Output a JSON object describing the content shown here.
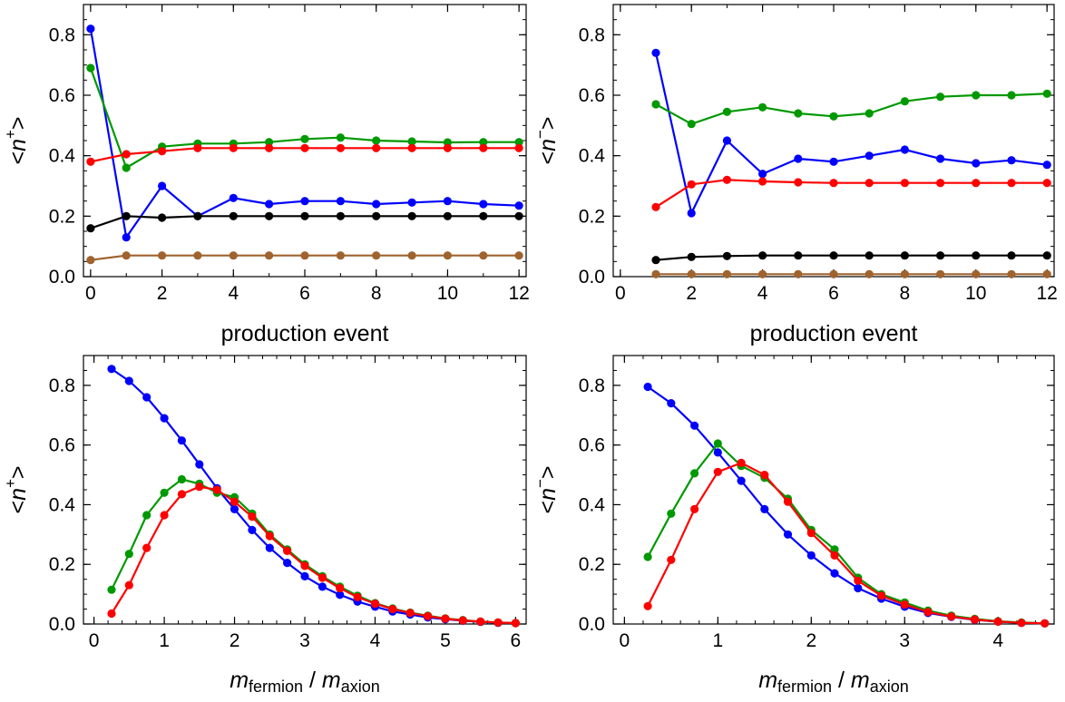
{
  "colors": {
    "blue": "#0000ff",
    "green": "#009900",
    "red": "#ff0000",
    "black": "#000000",
    "brown": "#a0632e"
  },
  "chart_data": [
    {
      "type": "line",
      "xlabel": "production event",
      "ylabel": {
        "open": "<",
        "var": "n",
        "sup": "+",
        "close": ">"
      },
      "xlim": [
        -0.2,
        12.2
      ],
      "ylim": [
        0,
        0.9
      ],
      "xticks": [
        0,
        2,
        4,
        6,
        8,
        10,
        12
      ],
      "yticks": [
        0.0,
        0.2,
        0.4,
        0.6,
        0.8
      ],
      "xtick_labels": [
        "0",
        "2",
        "4",
        "6",
        "8",
        "10",
        "12"
      ],
      "ytick_labels": [
        "0.0",
        "0.2",
        "0.4",
        "0.6",
        "0.8"
      ],
      "xminor": 1,
      "yminor": 0.05,
      "x": [
        0,
        1,
        2,
        3,
        4,
        5,
        6,
        7,
        8,
        9,
        10,
        11,
        12
      ],
      "series": [
        {
          "color": "blue",
          "values": [
            0.82,
            0.13,
            0.3,
            0.2,
            0.26,
            0.24,
            0.25,
            0.25,
            0.24,
            0.245,
            0.25,
            0.24,
            0.235
          ]
        },
        {
          "color": "green",
          "values": [
            0.69,
            0.36,
            0.43,
            0.44,
            0.44,
            0.445,
            0.455,
            0.46,
            0.45,
            0.447,
            0.444,
            0.445,
            0.445
          ]
        },
        {
          "color": "red",
          "values": [
            0.38,
            0.405,
            0.415,
            0.425,
            0.425,
            0.425,
            0.425,
            0.425,
            0.425,
            0.425,
            0.425,
            0.425,
            0.425
          ]
        },
        {
          "color": "black",
          "values": [
            0.16,
            0.2,
            0.195,
            0.2,
            0.2,
            0.2,
            0.2,
            0.2,
            0.2,
            0.2,
            0.2,
            0.2,
            0.2
          ]
        },
        {
          "color": "brown",
          "values": [
            0.055,
            0.07,
            0.07,
            0.07,
            0.07,
            0.07,
            0.07,
            0.07,
            0.07,
            0.07,
            0.07,
            0.07,
            0.07
          ]
        }
      ]
    },
    {
      "type": "line",
      "xlabel": "production event",
      "ylabel": {
        "open": "<",
        "var": "n",
        "sup": "−",
        "close": ">"
      },
      "xlim": [
        -0.2,
        12.2
      ],
      "ylim": [
        0,
        0.9
      ],
      "xticks": [
        0,
        2,
        4,
        6,
        8,
        10,
        12
      ],
      "yticks": [
        0.0,
        0.2,
        0.4,
        0.6,
        0.8
      ],
      "xtick_labels": [
        "0",
        "2",
        "4",
        "6",
        "8",
        "10",
        "12"
      ],
      "ytick_labels": [
        "0.0",
        "0.2",
        "0.4",
        "0.6",
        "0.8"
      ],
      "xminor": 1,
      "yminor": 0.05,
      "x": [
        1,
        2,
        3,
        4,
        5,
        6,
        7,
        8,
        9,
        10,
        11,
        12
      ],
      "series": [
        {
          "color": "blue",
          "values": [
            0.74,
            0.21,
            0.45,
            0.34,
            0.39,
            0.38,
            0.4,
            0.42,
            0.39,
            0.375,
            0.385,
            0.37
          ]
        },
        {
          "color": "green",
          "values": [
            0.57,
            0.505,
            0.545,
            0.56,
            0.54,
            0.53,
            0.54,
            0.58,
            0.595,
            0.6,
            0.6,
            0.605
          ]
        },
        {
          "color": "red",
          "values": [
            0.23,
            0.305,
            0.32,
            0.315,
            0.312,
            0.31,
            0.31,
            0.31,
            0.31,
            0.31,
            0.31,
            0.31
          ]
        },
        {
          "color": "black",
          "values": [
            0.055,
            0.065,
            0.068,
            0.07,
            0.07,
            0.07,
            0.07,
            0.07,
            0.07,
            0.07,
            0.07,
            0.07
          ]
        },
        {
          "color": "brown",
          "values": [
            0.008,
            0.008,
            0.008,
            0.008,
            0.008,
            0.008,
            0.008,
            0.008,
            0.008,
            0.008,
            0.008,
            0.008
          ]
        }
      ]
    },
    {
      "type": "line",
      "xlabel": {
        "a": "m",
        "a_sub": "fermion",
        "sep": " / ",
        "b": "m",
        "b_sub": "axion"
      },
      "ylabel": {
        "open": "<",
        "var": "n",
        "sup": "+",
        "close": ">"
      },
      "xlim": [
        -0.15,
        6.15
      ],
      "ylim": [
        0,
        0.9
      ],
      "xticks": [
        0,
        1,
        2,
        3,
        4,
        5,
        6
      ],
      "yticks": [
        0.0,
        0.2,
        0.4,
        0.6,
        0.8
      ],
      "xtick_labels": [
        "0",
        "1",
        "2",
        "3",
        "4",
        "5",
        "6"
      ],
      "ytick_labels": [
        "0.0",
        "0.2",
        "0.4",
        "0.6",
        "0.8"
      ],
      "xminor": 0.2,
      "yminor": 0.05,
      "x": [
        0.25,
        0.5,
        0.75,
        1.0,
        1.25,
        1.5,
        1.75,
        2.0,
        2.25,
        2.5,
        2.75,
        3.0,
        3.25,
        3.5,
        3.75,
        4.0,
        4.25,
        4.5,
        4.75,
        5.0,
        5.25,
        5.5,
        5.75,
        6.0
      ],
      "series": [
        {
          "color": "blue",
          "values": [
            0.855,
            0.815,
            0.76,
            0.69,
            0.615,
            0.535,
            0.455,
            0.385,
            0.315,
            0.255,
            0.205,
            0.16,
            0.125,
            0.098,
            0.075,
            0.058,
            0.042,
            0.032,
            0.022,
            0.016,
            0.011,
            0.007,
            0.004,
            0.003
          ]
        },
        {
          "color": "green",
          "values": [
            0.115,
            0.235,
            0.365,
            0.44,
            0.485,
            0.47,
            0.44,
            0.425,
            0.37,
            0.3,
            0.25,
            0.2,
            0.16,
            0.125,
            0.095,
            0.07,
            0.052,
            0.038,
            0.028,
            0.019,
            0.013,
            0.008,
            0.005,
            0.003
          ]
        },
        {
          "color": "red",
          "values": [
            0.035,
            0.13,
            0.255,
            0.365,
            0.435,
            0.46,
            0.45,
            0.41,
            0.36,
            0.295,
            0.245,
            0.195,
            0.155,
            0.12,
            0.09,
            0.068,
            0.05,
            0.037,
            0.026,
            0.018,
            0.012,
            0.008,
            0.005,
            0.003
          ]
        }
      ]
    },
    {
      "type": "line",
      "xlabel": {
        "a": "m",
        "a_sub": "fermion",
        "sep": " / ",
        "b": "m",
        "b_sub": "axion"
      },
      "ylabel": {
        "open": "<",
        "var": "n",
        "sup": "−",
        "close": ">"
      },
      "xlim": [
        -0.12,
        4.6
      ],
      "ylim": [
        0,
        0.9
      ],
      "xticks": [
        0,
        1,
        2,
        3,
        4
      ],
      "yticks": [
        0.0,
        0.2,
        0.4,
        0.6,
        0.8
      ],
      "xtick_labels": [
        "0",
        "1",
        "2",
        "3",
        "4"
      ],
      "ytick_labels": [
        "0.0",
        "0.2",
        "0.4",
        "0.6",
        "0.8"
      ],
      "xminor": 0.2,
      "yminor": 0.05,
      "x": [
        0.25,
        0.5,
        0.75,
        1.0,
        1.25,
        1.5,
        1.75,
        2.0,
        2.25,
        2.5,
        2.75,
        3.0,
        3.25,
        3.5,
        3.75,
        4.0,
        4.25,
        4.5
      ],
      "series": [
        {
          "color": "blue",
          "values": [
            0.795,
            0.74,
            0.665,
            0.575,
            0.48,
            0.385,
            0.3,
            0.23,
            0.17,
            0.12,
            0.085,
            0.058,
            0.037,
            0.024,
            0.014,
            0.008,
            0.004,
            0.002
          ]
        },
        {
          "color": "green",
          "values": [
            0.225,
            0.37,
            0.505,
            0.605,
            0.53,
            0.49,
            0.42,
            0.315,
            0.25,
            0.155,
            0.1,
            0.072,
            0.045,
            0.028,
            0.017,
            0.009,
            0.005,
            0.002
          ]
        },
        {
          "color": "red",
          "values": [
            0.06,
            0.215,
            0.385,
            0.51,
            0.54,
            0.5,
            0.41,
            0.305,
            0.23,
            0.145,
            0.095,
            0.065,
            0.04,
            0.025,
            0.015,
            0.008,
            0.004,
            0.002
          ]
        }
      ]
    }
  ]
}
